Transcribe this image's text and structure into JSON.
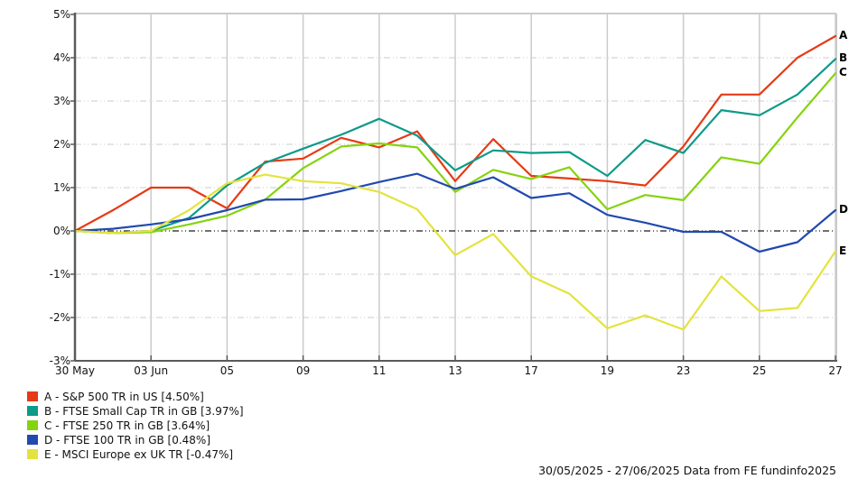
{
  "chart_data": {
    "type": "line",
    "title": "",
    "y_axis_unit": "%",
    "ylim": [
      -3,
      5
    ],
    "y_ticks": [
      5,
      4,
      3,
      2,
      1,
      0,
      -1,
      -2,
      -3
    ],
    "y_tick_labels": [
      "5%",
      "4%",
      "3%",
      "2%",
      "1%",
      "0%",
      "-1%",
      "-2%",
      "-3%"
    ],
    "grid": "on",
    "legend_position": "bottom-left",
    "dates": [
      "30 May",
      "02 Jun",
      "03 Jun",
      "04 Jun",
      "05 Jun",
      "06 Jun",
      "09 Jun",
      "10 Jun",
      "11 Jun",
      "12 Jun",
      "13 Jun",
      "16 Jun",
      "17 Jun",
      "18 Jun",
      "19 Jun",
      "20 Jun",
      "23 Jun",
      "24 Jun",
      "25 Jun",
      "26 Jun",
      "27 Jun"
    ],
    "x_tick_labels": [
      {
        "index": 0,
        "label": "30 May"
      },
      {
        "index": 2,
        "label": "03 Jun"
      },
      {
        "index": 4,
        "label": "05"
      },
      {
        "index": 6,
        "label": "09"
      },
      {
        "index": 8,
        "label": "11"
      },
      {
        "index": 10,
        "label": "13"
      },
      {
        "index": 12,
        "label": "17"
      },
      {
        "index": 14,
        "label": "19"
      },
      {
        "index": 16,
        "label": "23"
      },
      {
        "index": 18,
        "label": "25"
      },
      {
        "index": 20,
        "label": "27"
      }
    ],
    "series": [
      {
        "id": "A",
        "name": "S&P 500 TR in US",
        "final_value": "4.50%",
        "legend": "A - S&P 500 TR in US [4.50%]",
        "color": "#e63a14",
        "values": [
          0.0,
          0.48,
          1.0,
          1.0,
          0.52,
          1.6,
          1.67,
          2.15,
          1.93,
          2.3,
          1.15,
          2.12,
          1.27,
          1.21,
          1.15,
          1.05,
          1.95,
          3.15,
          3.15,
          4.0,
          4.5
        ]
      },
      {
        "id": "B",
        "name": "FTSE Small Cap TR in GB",
        "final_value": "3.97%",
        "legend": "B - FTSE Small Cap TR in GB [3.97%]",
        "color": "#0d9a88",
        "values": [
          0.0,
          -0.05,
          0.0,
          0.3,
          1.05,
          1.57,
          1.9,
          2.22,
          2.59,
          2.2,
          1.4,
          1.86,
          1.8,
          1.82,
          1.27,
          2.1,
          1.8,
          2.79,
          2.67,
          3.15,
          3.97
        ]
      },
      {
        "id": "C",
        "name": "FTSE 250 TR in GB",
        "final_value": "3.64%",
        "legend": "C - FTSE 250 TR in GB [3.64%]",
        "color": "#85d30e",
        "values": [
          0.0,
          -0.05,
          -0.03,
          0.15,
          0.35,
          0.72,
          1.45,
          1.95,
          2.02,
          1.93,
          0.9,
          1.41,
          1.2,
          1.47,
          0.5,
          0.83,
          0.71,
          1.7,
          1.55,
          2.62,
          3.64
        ]
      },
      {
        "id": "D",
        "name": "FTSE 100 TR in GB",
        "final_value": "0.48%",
        "legend": "D - FTSE 100 TR in GB [0.48%]",
        "color": "#2149ae",
        "values": [
          0.0,
          0.05,
          0.15,
          0.27,
          0.48,
          0.72,
          0.73,
          0.92,
          1.13,
          1.32,
          0.97,
          1.24,
          0.76,
          0.87,
          0.37,
          0.19,
          -0.02,
          -0.02,
          -0.48,
          -0.26,
          0.48
        ]
      },
      {
        "id": "E",
        "name": "MSCI Europe ex UK TR",
        "final_value": "-0.47%",
        "legend": "E - MSCI Europe ex UK TR [-0.47%]",
        "color": "#e3e33e",
        "values": [
          0.0,
          -0.05,
          0.0,
          0.48,
          1.1,
          1.3,
          1.15,
          1.1,
          0.9,
          0.5,
          -0.56,
          -0.07,
          -1.05,
          -1.45,
          -2.25,
          -1.95,
          -2.28,
          -1.05,
          -1.85,
          -1.78,
          -0.47
        ]
      }
    ],
    "footer": "30/05/2025 - 27/06/2025 Data from FE fundinfo2025",
    "colors": {
      "grid_light": "#cbcbcb",
      "zero_line": "#1a1a1a",
      "axis": "#5a5a5a",
      "text": "#111111"
    }
  }
}
